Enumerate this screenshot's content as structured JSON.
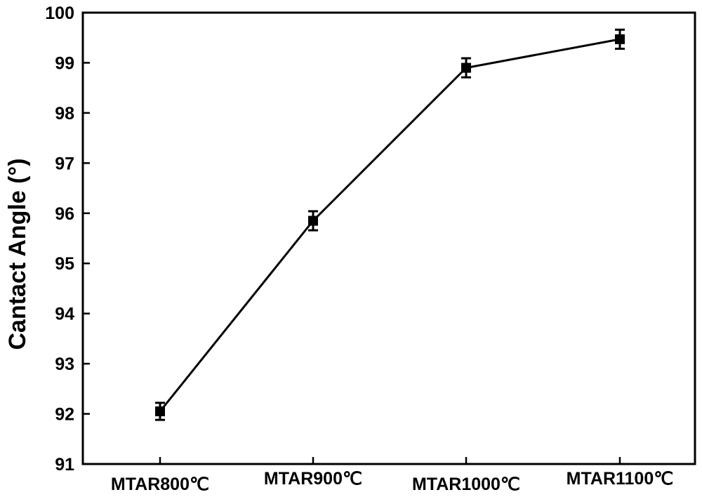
{
  "chart_data": {
    "type": "line",
    "categories": [
      "MTAR800℃",
      "MTAR900℃",
      "MTAR1000℃",
      "MTAR1100℃"
    ],
    "series": [
      {
        "values": [
          92.05,
          95.85,
          98.9,
          99.47
        ],
        "errors": [
          0.17,
          0.19,
          0.19,
          0.19
        ]
      }
    ],
    "xlabel": "",
    "ylabel": "Cantact Angle (°)",
    "ylim": [
      91,
      100
    ],
    "yticks": [
      91,
      92,
      93,
      94,
      95,
      96,
      97,
      98,
      99,
      100
    ],
    "grid": false,
    "marker": "square",
    "line_color": "#000000"
  }
}
